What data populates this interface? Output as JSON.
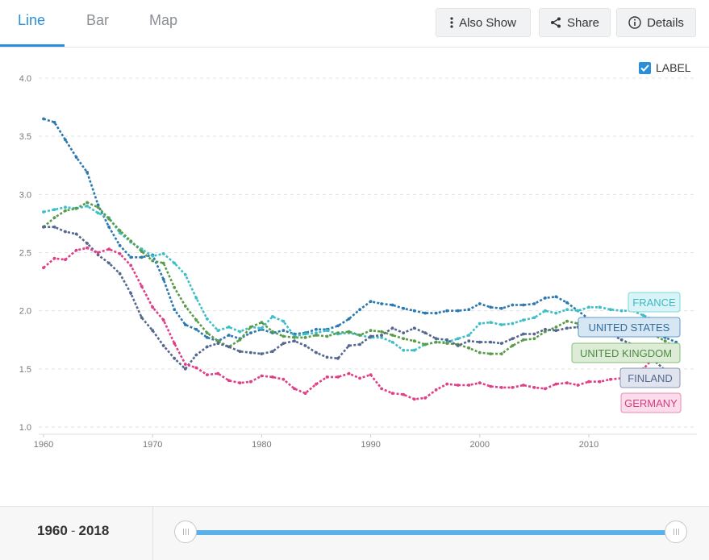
{
  "tabs": [
    {
      "label": "Line",
      "active": true
    },
    {
      "label": "Bar",
      "active": false
    },
    {
      "label": "Map",
      "active": false
    }
  ],
  "toolbar": {
    "also_show": "Also Show",
    "share": "Share",
    "details": "Details"
  },
  "label_toggle": {
    "text": "LABEL",
    "checked": true
  },
  "range": {
    "start": "1960",
    "sep": "-",
    "end": "2018"
  },
  "chart_data": {
    "type": "line",
    "title": "",
    "xlabel": "",
    "ylabel": "",
    "xlim": [
      1960,
      2019
    ],
    "ylim": [
      1.0,
      4.0
    ],
    "xticks": [
      "1960",
      "1970",
      "1980",
      "1990",
      "2000",
      "2010"
    ],
    "yticks": [
      "1.0",
      "1.5",
      "2.0",
      "2.5",
      "3.0",
      "3.5",
      "4.0"
    ],
    "grid": true,
    "labels_at_line_end": true,
    "x": [
      1960,
      1961,
      1962,
      1963,
      1964,
      1965,
      1966,
      1967,
      1968,
      1969,
      1970,
      1971,
      1972,
      1973,
      1974,
      1975,
      1976,
      1977,
      1978,
      1979,
      1980,
      1981,
      1982,
      1983,
      1984,
      1985,
      1986,
      1987,
      1988,
      1989,
      1990,
      1991,
      1992,
      1993,
      1994,
      1995,
      1996,
      1997,
      1998,
      1999,
      2000,
      2001,
      2002,
      2003,
      2004,
      2005,
      2006,
      2007,
      2008,
      2009,
      2010,
      2011,
      2012,
      2013,
      2014,
      2015,
      2016,
      2017,
      2018
    ],
    "series": [
      {
        "name": "UNITED STATES",
        "color": "#2c79b0",
        "values": [
          3.65,
          3.62,
          3.47,
          3.32,
          3.19,
          2.91,
          2.72,
          2.56,
          2.46,
          2.46,
          2.48,
          2.27,
          2.01,
          1.88,
          1.84,
          1.77,
          1.74,
          1.79,
          1.76,
          1.81,
          1.84,
          1.81,
          1.83,
          1.8,
          1.81,
          1.84,
          1.84,
          1.87,
          1.93,
          2.01,
          2.08,
          2.06,
          2.05,
          2.02,
          2.0,
          1.98,
          1.98,
          2.0,
          2.0,
          2.01,
          2.06,
          2.03,
          2.02,
          2.05,
          2.05,
          2.06,
          2.11,
          2.12,
          2.07,
          2.0,
          1.93,
          1.89,
          1.88,
          1.86,
          1.86,
          1.84,
          1.82,
          1.77,
          1.73
        ]
      },
      {
        "name": "FRANCE",
        "color": "#3ebfc8",
        "values": [
          2.85,
          2.87,
          2.89,
          2.88,
          2.9,
          2.84,
          2.8,
          2.67,
          2.59,
          2.53,
          2.47,
          2.49,
          2.41,
          2.31,
          2.11,
          1.93,
          1.83,
          1.86,
          1.82,
          1.86,
          1.85,
          1.95,
          1.91,
          1.78,
          1.8,
          1.81,
          1.83,
          1.8,
          1.81,
          1.79,
          1.77,
          1.77,
          1.73,
          1.66,
          1.66,
          1.71,
          1.73,
          1.73,
          1.76,
          1.79,
          1.89,
          1.9,
          1.88,
          1.89,
          1.92,
          1.94,
          2.0,
          1.98,
          2.01,
          2.0,
          2.03,
          2.03,
          2.01,
          2.0,
          2.0,
          1.96,
          1.92,
          1.9,
          1.88
        ]
      },
      {
        "name": "UNITED KINGDOM",
        "color": "#5a9c4a",
        "values": [
          2.72,
          2.8,
          2.86,
          2.88,
          2.93,
          2.89,
          2.79,
          2.69,
          2.6,
          2.51,
          2.43,
          2.41,
          2.2,
          2.04,
          1.92,
          1.81,
          1.74,
          1.69,
          1.75,
          1.86,
          1.9,
          1.82,
          1.78,
          1.77,
          1.77,
          1.79,
          1.78,
          1.81,
          1.82,
          1.79,
          1.83,
          1.82,
          1.79,
          1.76,
          1.74,
          1.71,
          1.73,
          1.72,
          1.71,
          1.68,
          1.64,
          1.63,
          1.63,
          1.7,
          1.75,
          1.76,
          1.82,
          1.86,
          1.91,
          1.89,
          1.92,
          1.91,
          1.92,
          1.83,
          1.81,
          1.8,
          1.79,
          1.74,
          1.68
        ]
      },
      {
        "name": "FINLAND",
        "color": "#56678f",
        "values": [
          2.72,
          2.72,
          2.68,
          2.66,
          2.58,
          2.48,
          2.41,
          2.32,
          2.15,
          1.94,
          1.83,
          1.7,
          1.59,
          1.5,
          1.62,
          1.69,
          1.72,
          1.69,
          1.65,
          1.64,
          1.63,
          1.65,
          1.72,
          1.74,
          1.7,
          1.64,
          1.6,
          1.59,
          1.7,
          1.71,
          1.78,
          1.79,
          1.85,
          1.81,
          1.85,
          1.81,
          1.76,
          1.75,
          1.7,
          1.74,
          1.73,
          1.73,
          1.72,
          1.76,
          1.8,
          1.8,
          1.84,
          1.83,
          1.85,
          1.86,
          1.87,
          1.83,
          1.8,
          1.75,
          1.71,
          1.65,
          1.57,
          1.49,
          1.41
        ]
      },
      {
        "name": "GERMANY",
        "color": "#de3f87",
        "values": [
          2.37,
          2.45,
          2.44,
          2.52,
          2.54,
          2.5,
          2.53,
          2.49,
          2.39,
          2.21,
          2.03,
          1.92,
          1.72,
          1.54,
          1.51,
          1.45,
          1.46,
          1.4,
          1.38,
          1.39,
          1.44,
          1.43,
          1.41,
          1.33,
          1.29,
          1.37,
          1.43,
          1.43,
          1.46,
          1.42,
          1.45,
          1.33,
          1.29,
          1.28,
          1.24,
          1.25,
          1.32,
          1.37,
          1.36,
          1.36,
          1.38,
          1.35,
          1.34,
          1.34,
          1.36,
          1.34,
          1.33,
          1.37,
          1.38,
          1.36,
          1.39,
          1.39,
          1.41,
          1.42,
          1.47,
          1.5,
          1.6,
          1.57,
          1.57
        ]
      }
    ]
  }
}
